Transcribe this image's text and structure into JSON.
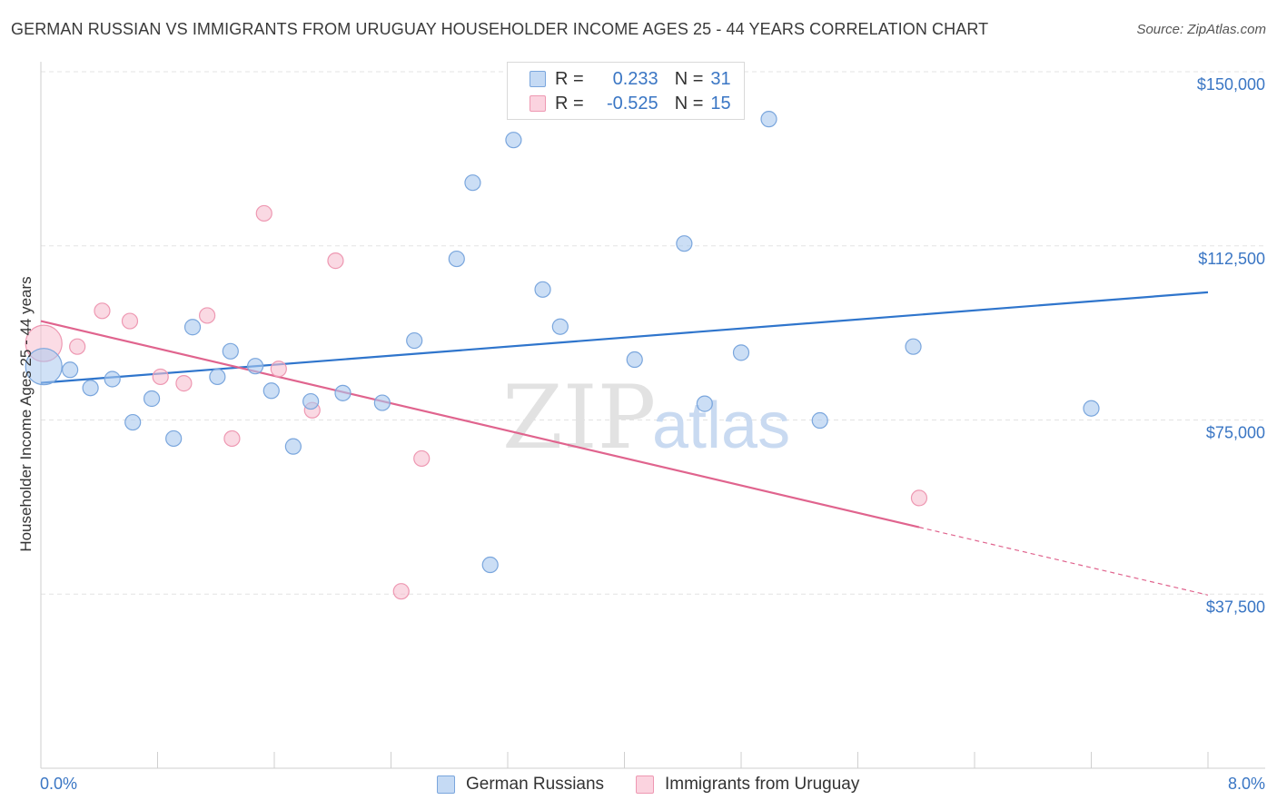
{
  "title": "GERMAN RUSSIAN VS IMMIGRANTS FROM URUGUAY HOUSEHOLDER INCOME AGES 25 - 44 YEARS CORRELATION CHART",
  "source": "Source: ZipAtlas.com",
  "watermark": {
    "zip": "ZIP",
    "atlas": "atlas"
  },
  "legend": {
    "series1": {
      "r_label": "R =",
      "r_value": "0.233",
      "n_label": "N =",
      "n_value": "31"
    },
    "series2": {
      "r_label": "R =",
      "r_value": "-0.525",
      "n_label": "N =",
      "n_value": "15"
    }
  },
  "bottom_legend": {
    "series1": "German Russians",
    "series2": "Immigrants from Uruguay"
  },
  "chart_data": {
    "type": "scatter",
    "title": "GERMAN RUSSIAN VS IMMIGRANTS FROM URUGUAY HOUSEHOLDER INCOME AGES 25 - 44 YEARS CORRELATION CHART",
    "xlabel": "",
    "ylabel": "Householder Income Ages 25 - 44 years",
    "xlim": [
      0,
      8
    ],
    "ylim": [
      0,
      150000
    ],
    "x_tick_labels": [
      "0.0%",
      "8.0%"
    ],
    "y_ticks": [
      37500,
      75000,
      112500,
      150000
    ],
    "y_tick_labels": [
      "$37,500",
      "$75,000",
      "$112,500",
      "$150,000"
    ],
    "grid": true,
    "series": [
      {
        "name": "German Russians",
        "color": "#a9c8ee",
        "stroke": "#7aa6dd",
        "line_color": "#2f75cc",
        "points": [
          {
            "x": 0.02,
            "y": 86500,
            "big": true
          },
          {
            "x": 0.2,
            "y": 85800
          },
          {
            "x": 0.34,
            "y": 81900
          },
          {
            "x": 0.49,
            "y": 83800
          },
          {
            "x": 0.63,
            "y": 74500
          },
          {
            "x": 0.76,
            "y": 79600
          },
          {
            "x": 0.91,
            "y": 71000
          },
          {
            "x": 1.04,
            "y": 95000
          },
          {
            "x": 1.21,
            "y": 84300
          },
          {
            "x": 1.3,
            "y": 89800
          },
          {
            "x": 1.47,
            "y": 86600
          },
          {
            "x": 1.58,
            "y": 81300
          },
          {
            "x": 1.73,
            "y": 69300
          },
          {
            "x": 1.85,
            "y": 79000
          },
          {
            "x": 2.07,
            "y": 80800
          },
          {
            "x": 2.34,
            "y": 78700
          },
          {
            "x": 2.56,
            "y": 92100
          },
          {
            "x": 2.85,
            "y": 109700
          },
          {
            "x": 2.96,
            "y": 126100
          },
          {
            "x": 3.08,
            "y": 43800
          },
          {
            "x": 3.24,
            "y": 135300
          },
          {
            "x": 3.44,
            "y": 103100
          },
          {
            "x": 3.56,
            "y": 95100
          },
          {
            "x": 4.07,
            "y": 88000
          },
          {
            "x": 4.41,
            "y": 113000
          },
          {
            "x": 4.55,
            "y": 78500
          },
          {
            "x": 4.8,
            "y": 89500
          },
          {
            "x": 4.99,
            "y": 139800
          },
          {
            "x": 5.34,
            "y": 74900
          },
          {
            "x": 5.98,
            "y": 90800
          },
          {
            "x": 7.2,
            "y": 77500
          }
        ],
        "trend": {
          "x": [
            0,
            8
          ],
          "y": [
            83000,
            102500
          ],
          "dashed_from": null
        }
      },
      {
        "name": "Immigrants from Uruguay",
        "color": "#f7c0d0",
        "stroke": "#ee98b2",
        "line_color": "#e0648e",
        "points": [
          {
            "x": 0.02,
            "y": 91500,
            "big": true
          },
          {
            "x": 0.25,
            "y": 90800
          },
          {
            "x": 0.42,
            "y": 98500
          },
          {
            "x": 0.61,
            "y": 96300
          },
          {
            "x": 0.82,
            "y": 84300
          },
          {
            "x": 0.98,
            "y": 82900
          },
          {
            "x": 1.14,
            "y": 97500
          },
          {
            "x": 1.31,
            "y": 71000
          },
          {
            "x": 1.53,
            "y": 119500
          },
          {
            "x": 1.63,
            "y": 86000
          },
          {
            "x": 1.86,
            "y": 77100
          },
          {
            "x": 2.02,
            "y": 109300
          },
          {
            "x": 2.47,
            "y": 38100
          },
          {
            "x": 2.61,
            "y": 66700
          },
          {
            "x": 6.02,
            "y": 58200
          }
        ],
        "trend": {
          "x": [
            0,
            8
          ],
          "y": [
            96300,
            37300
          ],
          "dashed_from": 6.02
        }
      }
    ]
  }
}
